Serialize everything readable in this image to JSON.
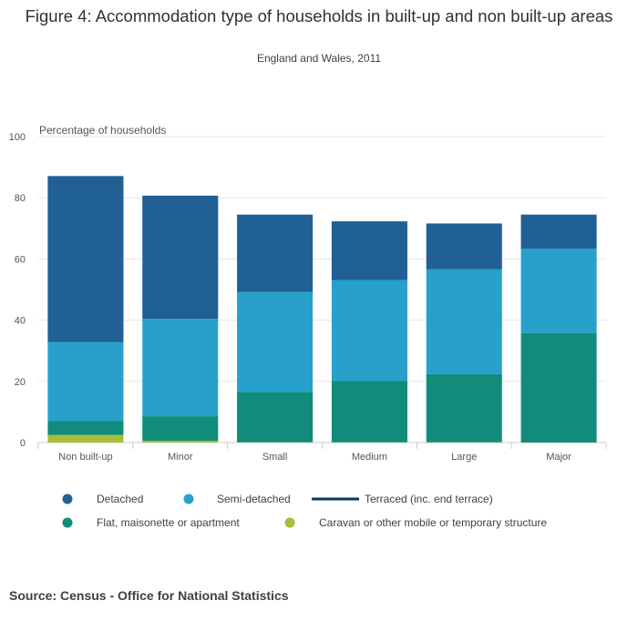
{
  "title": "Figure 4: Accommodation type of households in built-up and non built-up areas",
  "subtitle": "England and Wales, 2011",
  "source": "Source: Census - Office for National Statistics",
  "colors": {
    "detached": "#206095",
    "semi_detached": "#27a0cc",
    "terraced": "#003c57",
    "flat": "#118c7b",
    "caravan": "#a8bd3a",
    "gridline": "#e6e6e6",
    "axis": "#cccccc"
  },
  "chart_data": {
    "type": "bar",
    "stacked": true,
    "ylabel": "Percentage of households",
    "xlabel": "",
    "ylim": [
      0,
      100
    ],
    "yticks": [
      0,
      20,
      40,
      60,
      80,
      100
    ],
    "grid": true,
    "legend_position": "bottom",
    "categories": [
      "Non built-up",
      "Minor",
      "Small",
      "Medium",
      "Large",
      "Major"
    ],
    "series": [
      {
        "name": "Caravan or other mobile or temporary structure",
        "color_key": "caravan",
        "values": [
          2.5,
          0.6,
          0.1,
          0.1,
          0.1,
          0.0
        ]
      },
      {
        "name": "Flat, maisonette or apartment",
        "color_key": "flat",
        "values": [
          4.5,
          8.0,
          16.4,
          20.0,
          22.3,
          35.8
        ]
      },
      {
        "name": "Semi-detached",
        "color_key": "semi_detached",
        "values": [
          25.8,
          31.8,
          32.7,
          33.0,
          34.2,
          27.6
        ]
      },
      {
        "name": "Detached",
        "color_key": "detached",
        "values": [
          54.3,
          40.3,
          25.3,
          19.2,
          15.0,
          11.1
        ]
      },
      {
        "name": "Terraced (inc. end terrace)",
        "color_key": "terraced",
        "values": [
          null,
          null,
          null,
          null,
          null,
          null
        ]
      }
    ]
  },
  "legend": [
    {
      "label": "Detached",
      "color_key": "detached",
      "marker": "circle"
    },
    {
      "label": "Semi-detached",
      "color_key": "semi_detached",
      "marker": "circle"
    },
    {
      "label": "Terraced (inc. end terrace)",
      "color_key": "terraced",
      "marker": "line"
    },
    {
      "label": "Flat, maisonette or apartment",
      "color_key": "flat",
      "marker": "circle"
    },
    {
      "label": "Caravan or other mobile or temporary structure",
      "color_key": "caravan",
      "marker": "circle"
    }
  ]
}
